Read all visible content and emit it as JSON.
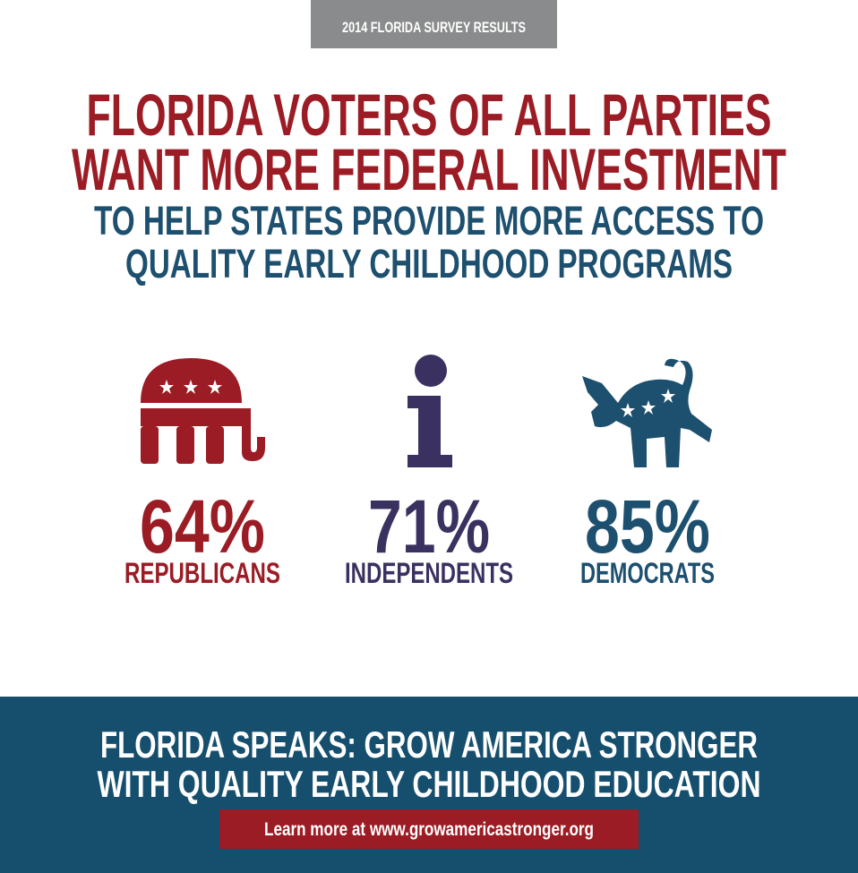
{
  "header": {
    "badge": "2014 FLORIDA SURVEY RESULTS"
  },
  "title": {
    "lines": [
      "FLORIDA VOTERS OF ALL PARTIES",
      "WANT MORE FEDERAL INVESTMENT"
    ]
  },
  "subtitle": {
    "lines": [
      "TO HELP STATES PROVIDE MORE ACCESS TO",
      "QUALITY EARLY CHILDHOOD PROGRAMS"
    ]
  },
  "stats": [
    {
      "value": "64%",
      "label": "REPUBLICANS"
    },
    {
      "value": "71%",
      "label": "INDEPENDENTS"
    },
    {
      "value": "85%",
      "label": "DEMOCRATS"
    }
  ],
  "footer": {
    "lines": [
      "FLORIDA SPEAKS: GROW AMERICA STRONGER",
      "WITH QUALITY EARLY CHILDHOOD EDUCATION"
    ],
    "link": "Learn more at www.growamericastronger.org"
  }
}
